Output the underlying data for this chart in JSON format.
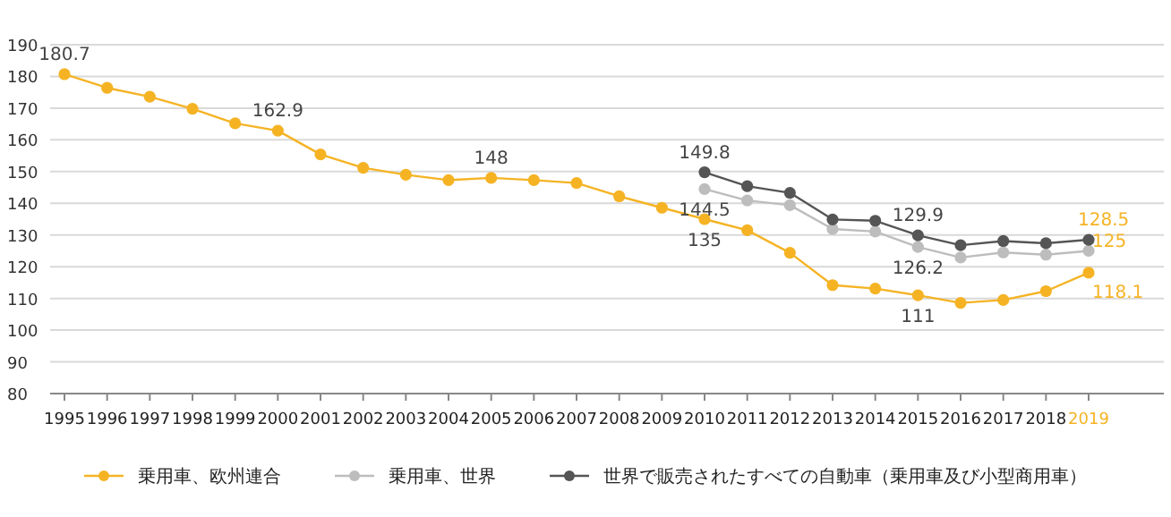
{
  "chart_data": {
    "type": "line",
    "categories": [
      "1995",
      "1996",
      "1997",
      "1998",
      "1999",
      "2000",
      "2001",
      "2002",
      "2003",
      "2004",
      "2005",
      "2006",
      "2007",
      "2008",
      "2009",
      "2010",
      "2011",
      "2012",
      "2013",
      "2014",
      "2015",
      "2016",
      "2017",
      "2018",
      "2019"
    ],
    "series": [
      {
        "name": "乗用車、欧州連合",
        "color": "#f5b324",
        "values": [
          180.7,
          176.4,
          173.6,
          169.8,
          165.2,
          162.9,
          155.4,
          151.2,
          149,
          147.3,
          148,
          147.3,
          146.4,
          142.2,
          138.6,
          135,
          131.5,
          124.4,
          114.2,
          113.1,
          111,
          108.6,
          109.5,
          112.3,
          118.1
        ],
        "value_labels": [
          "180.7",
          null,
          null,
          null,
          null,
          "162.9",
          null,
          null,
          null,
          null,
          "148",
          null,
          null,
          null,
          null,
          "135",
          null,
          null,
          null,
          null,
          "111",
          null,
          null,
          null,
          "118.1"
        ]
      },
      {
        "name": "乗用車、世界",
        "color": "#bdbdbd",
        "values": [
          null,
          null,
          null,
          null,
          null,
          null,
          null,
          null,
          null,
          null,
          null,
          null,
          null,
          null,
          null,
          144.5,
          140.9,
          139.4,
          131.9,
          131.1,
          126.2,
          122.9,
          124.5,
          123.8,
          125
        ],
        "value_labels": [
          null,
          null,
          null,
          null,
          null,
          null,
          null,
          null,
          null,
          null,
          null,
          null,
          null,
          null,
          null,
          "144.5",
          null,
          null,
          null,
          null,
          "126.2",
          null,
          null,
          null,
          "125"
        ]
      },
      {
        "name": "世界で販売されたすべての自動車（乗用車及び小型商用車）",
        "color": "#555555",
        "values": [
          null,
          null,
          null,
          null,
          null,
          null,
          null,
          null,
          null,
          null,
          null,
          null,
          null,
          null,
          null,
          149.8,
          145.4,
          143.3,
          134.9,
          134.5,
          129.9,
          126.8,
          128.1,
          127.4,
          128.5
        ],
        "value_labels": [
          null,
          null,
          null,
          null,
          null,
          null,
          null,
          null,
          null,
          null,
          null,
          null,
          null,
          null,
          null,
          "149.8",
          null,
          null,
          null,
          null,
          "129.9",
          null,
          null,
          null,
          "128.5"
        ]
      }
    ],
    "ylim": [
      80,
      190
    ],
    "yticks": [
      80,
      90,
      100,
      110,
      120,
      130,
      140,
      150,
      160,
      170,
      180,
      190
    ],
    "grid": "y",
    "legend": "bottom",
    "marker": "circle",
    "line_style": "solid"
  }
}
